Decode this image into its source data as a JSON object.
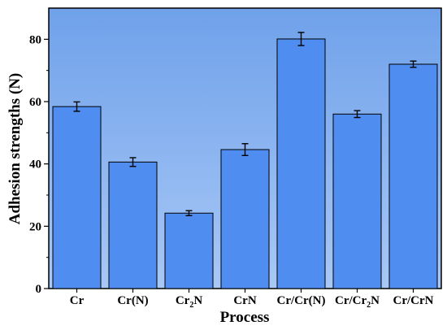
{
  "chart_data": {
    "type": "bar",
    "title": "",
    "xlabel": "Process",
    "ylabel": "Adhesion strengths (N)",
    "categories": [
      "Cr",
      "Cr(N)",
      "Cr2N",
      "CrN",
      "Cr/Cr(N)",
      "Cr/Cr2N",
      "Cr/CrN"
    ],
    "category_labels": [
      {
        "base": "Cr",
        "sub": "",
        "tail": ""
      },
      {
        "base": "Cr(N)",
        "sub": "",
        "tail": ""
      },
      {
        "base": "Cr",
        "sub": "2",
        "tail": "N"
      },
      {
        "base": "CrN",
        "sub": "",
        "tail": ""
      },
      {
        "base": "Cr/Cr(N)",
        "sub": "",
        "tail": ""
      },
      {
        "base": "Cr/Cr",
        "sub": "2",
        "tail": "N"
      },
      {
        "base": "Cr/CrN",
        "sub": "",
        "tail": ""
      }
    ],
    "values": [
      58.4,
      40.6,
      24.2,
      44.6,
      80.1,
      56.0,
      72.0
    ],
    "errors": [
      1.5,
      1.4,
      0.8,
      1.9,
      2.1,
      1.1,
      1.0
    ],
    "ylim": [
      0,
      90
    ],
    "yticks": [
      0,
      20,
      40,
      60,
      80
    ],
    "bar_color": "#4f8ef0",
    "background_gradient": [
      "#a8c8f6",
      "#6fa1ea"
    ],
    "grid": false,
    "legend": "none"
  }
}
